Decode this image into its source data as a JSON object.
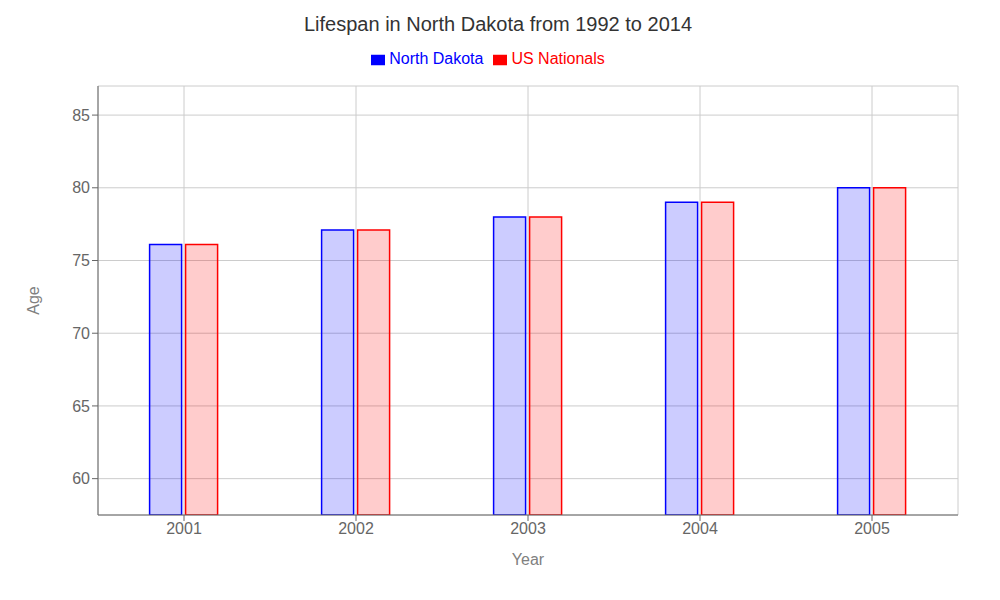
{
  "chart_data": {
    "type": "bar",
    "title": "Lifespan in North Dakota from 1992 to 2014",
    "xlabel": "Year",
    "ylabel": "Age",
    "categories": [
      "2001",
      "2002",
      "2003",
      "2004",
      "2005"
    ],
    "series": [
      {
        "name": "North Dakota",
        "color": "#0000ff",
        "values": [
          76.1,
          77.1,
          78.0,
          79.0,
          80.0
        ]
      },
      {
        "name": "US Nationals",
        "color": "#ff0000",
        "values": [
          76.1,
          77.1,
          78.0,
          79.0,
          80.0
        ]
      }
    ],
    "ylim": [
      57.5,
      87
    ],
    "yticks": [
      60,
      65,
      70,
      75,
      80,
      85
    ],
    "grid": true,
    "legend": "top"
  }
}
